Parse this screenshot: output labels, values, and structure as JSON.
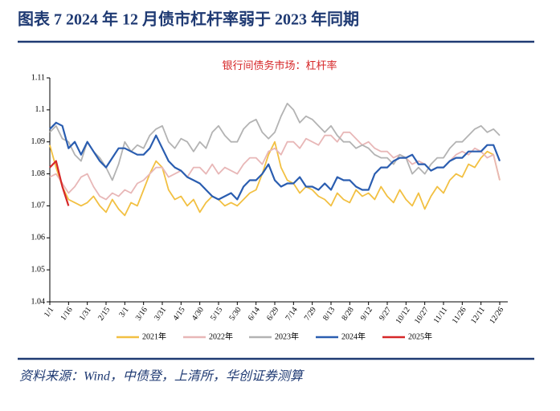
{
  "header": {
    "title": "图表 7   2024 年 12 月债市杠杆率弱于 2023 年同期"
  },
  "footer": {
    "source": "资料来源：Wind，中债登，上清所，华创证券测算"
  },
  "chart_data": {
    "type": "line",
    "title": "银行间债务市场：杠杆率",
    "categories": [
      "1/1",
      null,
      null,
      "1/16",
      null,
      null,
      "1/31",
      null,
      null,
      "2/15",
      null,
      null,
      "3/1",
      null,
      null,
      "3/16",
      null,
      null,
      "3/31",
      null,
      null,
      "4/15",
      null,
      null,
      "4/30",
      null,
      null,
      "5/15",
      null,
      null,
      "5/30",
      null,
      null,
      "6/14",
      null,
      null,
      "6/29",
      null,
      null,
      "7/14",
      null,
      null,
      "7/29",
      null,
      null,
      "8/13",
      null,
      null,
      "8/28",
      null,
      null,
      "9/12",
      null,
      null,
      "9/27",
      null,
      null,
      "10/12",
      null,
      null,
      "10/27",
      null,
      null,
      "11/11",
      null,
      null,
      "11/26",
      null,
      null,
      "12/11",
      null,
      null,
      "12/26"
    ],
    "ylim": [
      1.04,
      1.11
    ],
    "yticks": [
      1.04,
      1.05,
      1.06,
      1.07,
      1.08,
      1.09,
      1.1,
      1.11
    ],
    "legend": "bottom",
    "series": [
      {
        "name": "2021年",
        "color": "#f2c042",
        "values": [
          1.089,
          1.082,
          1.076,
          1.072,
          1.071,
          1.07,
          1.071,
          1.073,
          1.07,
          1.068,
          1.072,
          1.069,
          1.067,
          1.071,
          1.07,
          1.075,
          1.08,
          1.084,
          1.082,
          1.075,
          1.072,
          1.073,
          1.07,
          1.072,
          1.068,
          1.071,
          1.073,
          1.072,
          1.07,
          1.071,
          1.07,
          1.072,
          1.074,
          1.075,
          1.08,
          1.086,
          1.09,
          1.082,
          1.078,
          1.077,
          1.074,
          1.076,
          1.075,
          1.073,
          1.072,
          1.07,
          1.074,
          1.072,
          1.071,
          1.075,
          1.073,
          1.074,
          1.072,
          1.076,
          1.073,
          1.071,
          1.075,
          1.072,
          1.07,
          1.074,
          1.069,
          1.073,
          1.076,
          1.074,
          1.078,
          1.08,
          1.079,
          1.083,
          1.082,
          1.085,
          1.087,
          1.086,
          1.078
        ]
      },
      {
        "name": "2022年",
        "color": "#e8b7b7",
        "values": [
          1.079,
          1.08,
          1.077,
          1.074,
          1.076,
          1.079,
          1.08,
          1.076,
          1.073,
          1.072,
          1.074,
          1.073,
          1.075,
          1.074,
          1.077,
          1.078,
          1.08,
          1.082,
          1.082,
          1.079,
          1.08,
          1.081,
          1.079,
          1.082,
          1.082,
          1.08,
          1.083,
          1.08,
          1.082,
          1.081,
          1.08,
          1.083,
          1.085,
          1.085,
          1.083,
          1.087,
          1.088,
          1.086,
          1.09,
          1.09,
          1.088,
          1.091,
          1.09,
          1.089,
          1.092,
          1.092,
          1.09,
          1.093,
          1.093,
          1.091,
          1.089,
          1.09,
          1.088,
          1.087,
          1.087,
          1.085,
          1.086,
          1.085,
          1.083,
          1.084,
          1.083,
          1.081,
          1.082,
          1.082,
          1.084,
          1.086,
          1.087,
          1.086,
          1.088,
          1.087,
          1.085,
          1.086,
          1.078
        ]
      },
      {
        "name": "2023年",
        "color": "#b3b3b3",
        "values": [
          1.093,
          1.095,
          1.091,
          1.09,
          1.086,
          1.084,
          1.09,
          1.087,
          1.085,
          1.082,
          1.078,
          1.083,
          1.09,
          1.087,
          1.089,
          1.088,
          1.092,
          1.094,
          1.095,
          1.09,
          1.088,
          1.091,
          1.09,
          1.087,
          1.09,
          1.088,
          1.093,
          1.095,
          1.092,
          1.09,
          1.09,
          1.094,
          1.096,
          1.097,
          1.093,
          1.091,
          1.093,
          1.098,
          1.102,
          1.1,
          1.096,
          1.098,
          1.097,
          1.095,
          1.093,
          1.095,
          1.092,
          1.09,
          1.09,
          1.088,
          1.089,
          1.088,
          1.086,
          1.085,
          1.085,
          1.083,
          1.086,
          1.085,
          1.08,
          1.082,
          1.08,
          1.083,
          1.085,
          1.085,
          1.088,
          1.09,
          1.09,
          1.092,
          1.094,
          1.095,
          1.093,
          1.094,
          1.092
        ]
      },
      {
        "name": "2024年",
        "color": "#2a5db0",
        "values": [
          1.094,
          1.096,
          1.095,
          1.088,
          1.09,
          1.086,
          1.09,
          1.087,
          1.084,
          1.082,
          1.085,
          1.088,
          1.088,
          1.087,
          1.086,
          1.086,
          1.088,
          1.092,
          1.088,
          1.084,
          1.082,
          1.081,
          1.079,
          1.078,
          1.077,
          1.075,
          1.073,
          1.072,
          1.073,
          1.074,
          1.072,
          1.076,
          1.078,
          1.078,
          1.08,
          1.083,
          1.078,
          1.076,
          1.077,
          1.077,
          1.079,
          1.076,
          1.076,
          1.075,
          1.077,
          1.075,
          1.079,
          1.078,
          1.078,
          1.076,
          1.075,
          1.075,
          1.08,
          1.082,
          1.082,
          1.084,
          1.085,
          1.085,
          1.086,
          1.083,
          1.083,
          1.081,
          1.082,
          1.082,
          1.084,
          1.085,
          1.085,
          1.087,
          1.087,
          1.087,
          1.089,
          1.089,
          1.084
        ]
      },
      {
        "name": "2025年",
        "color": "#d62728",
        "values": [
          1.082,
          1.084,
          1.076,
          1.07,
          null,
          null,
          null,
          null,
          null,
          null,
          null,
          null,
          null,
          null,
          null,
          null,
          null,
          null,
          null,
          null,
          null,
          null,
          null,
          null,
          null,
          null,
          null,
          null,
          null,
          null,
          null,
          null,
          null,
          null,
          null,
          null,
          null,
          null,
          null,
          null,
          null,
          null,
          null,
          null,
          null,
          null,
          null,
          null,
          null,
          null,
          null,
          null,
          null,
          null,
          null,
          null,
          null,
          null,
          null,
          null,
          null,
          null,
          null,
          null,
          null,
          null,
          null,
          null,
          null,
          null,
          null,
          null,
          null
        ]
      }
    ]
  }
}
